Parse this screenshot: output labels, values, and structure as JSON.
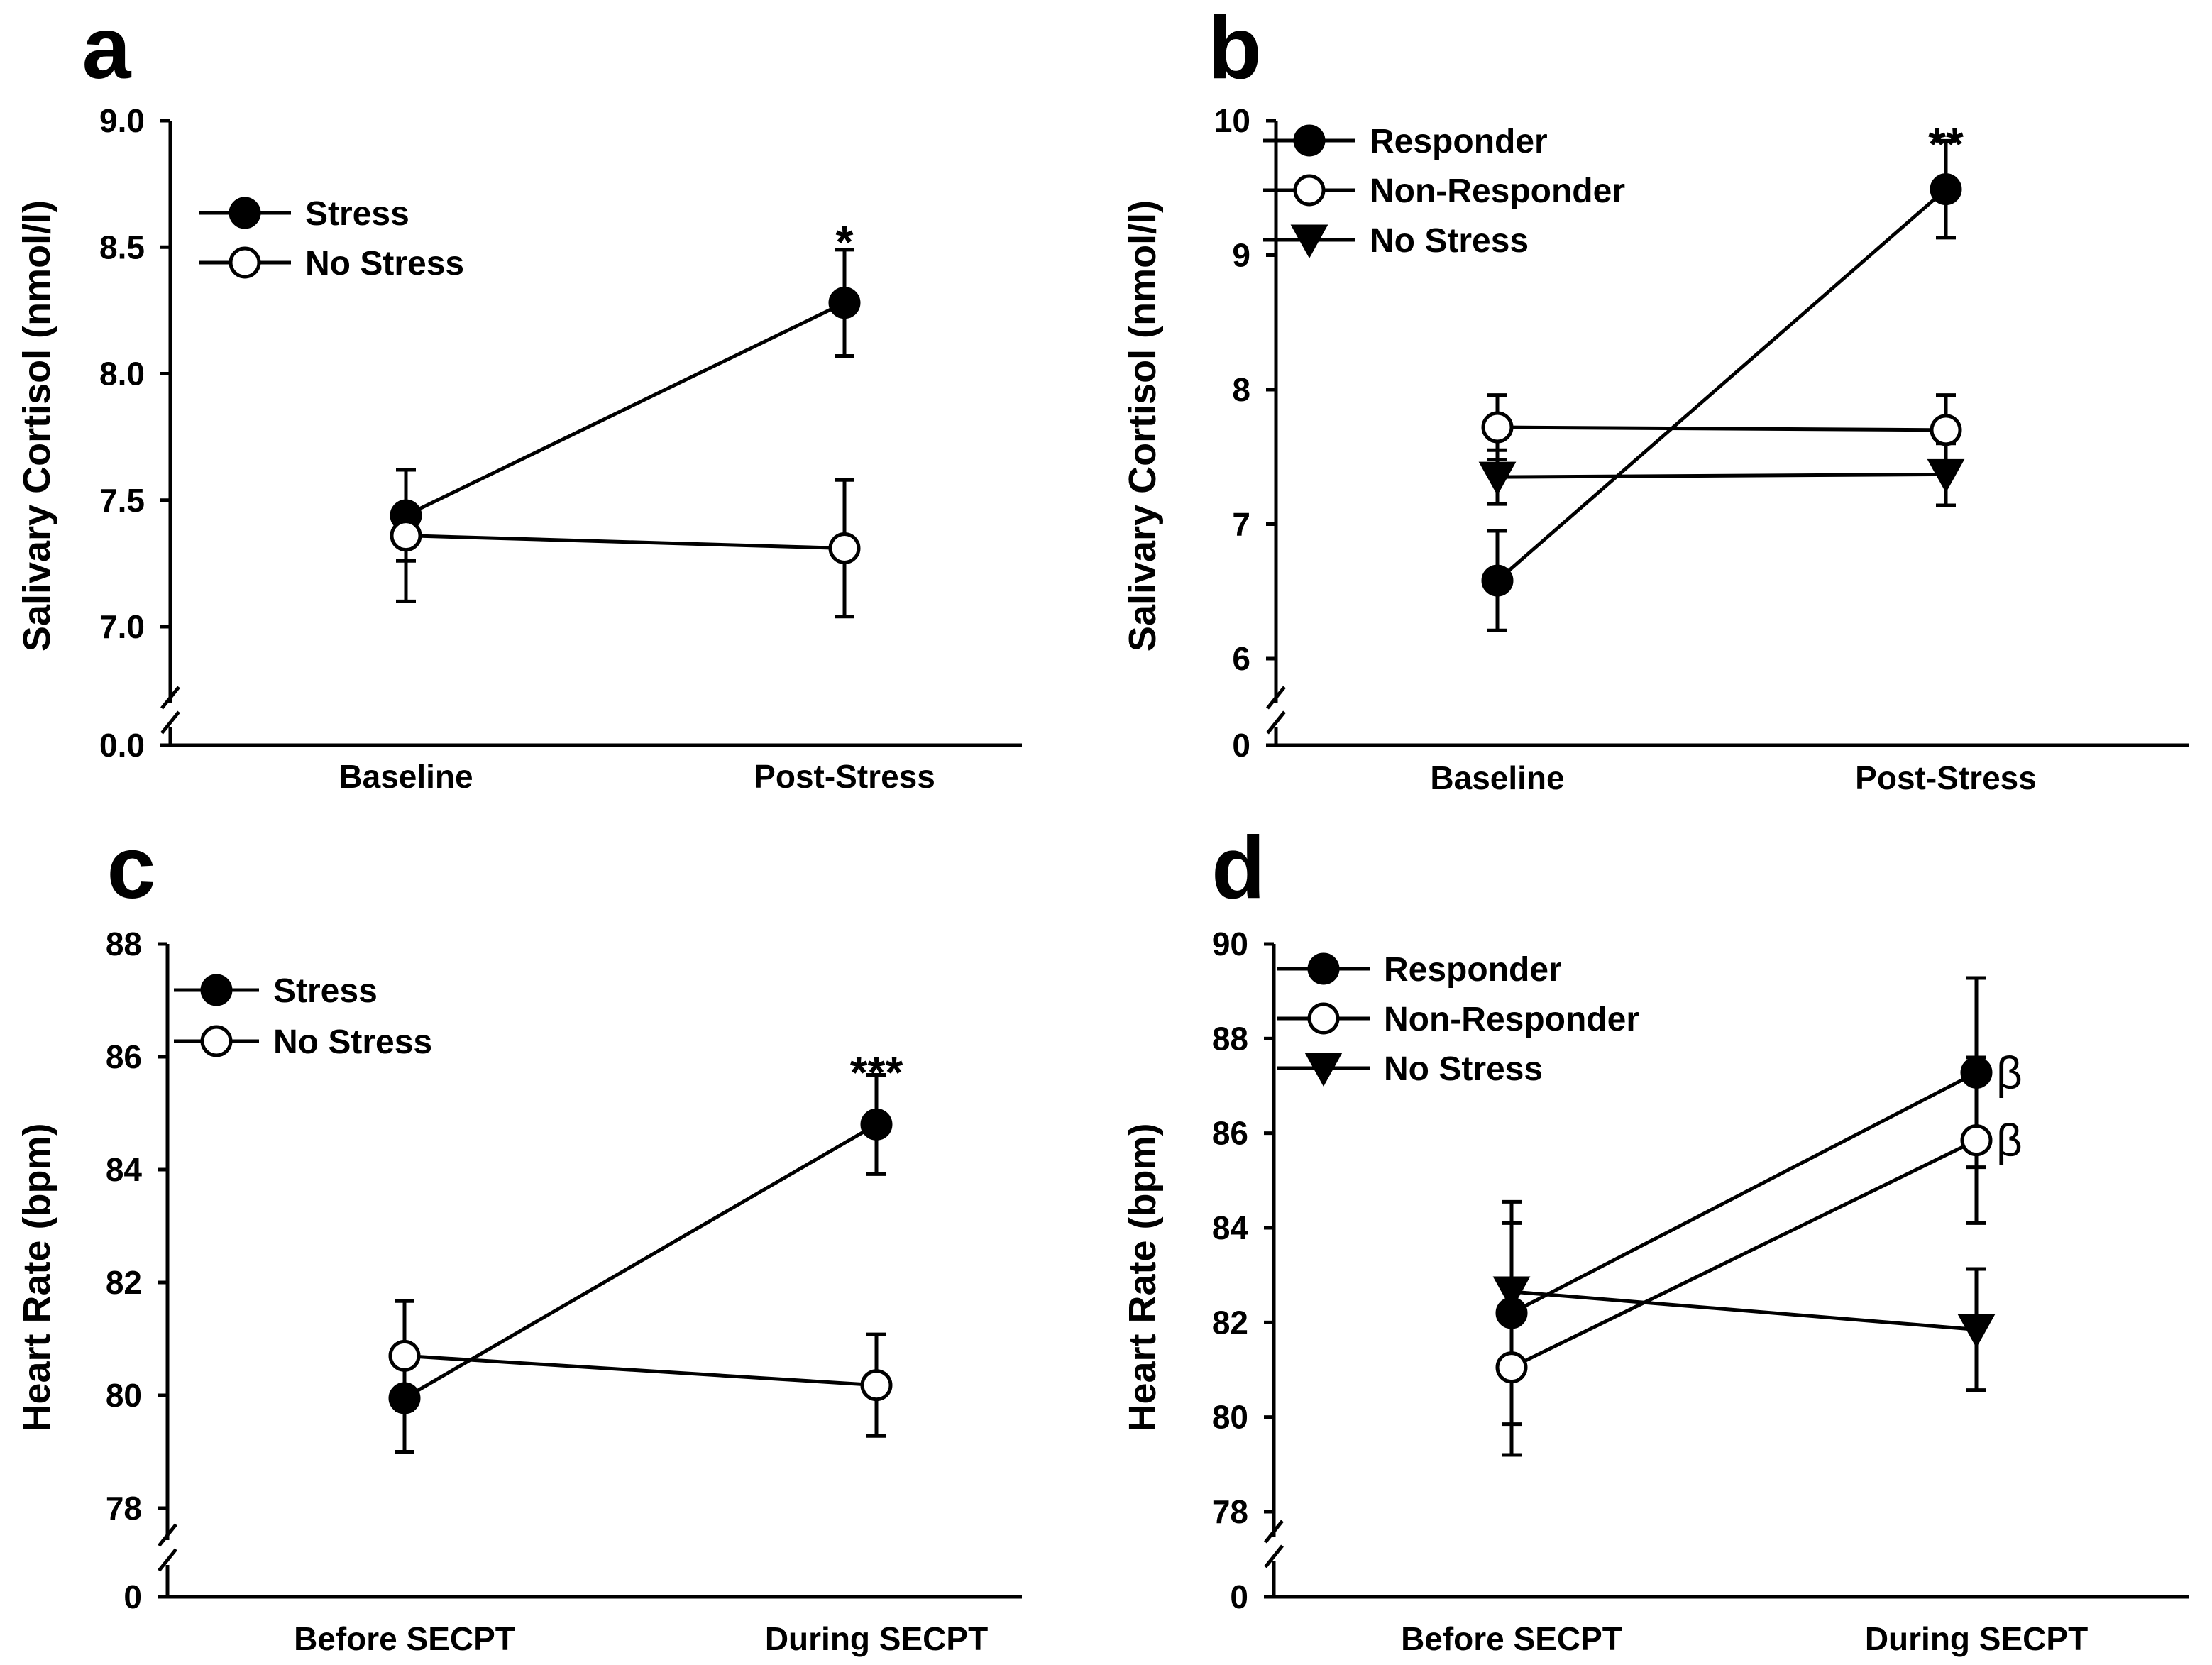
{
  "chart_data": [
    {
      "panel": "a",
      "type": "line",
      "ylabel": "Salivary Cortisol (nmol/l)",
      "categories": [
        "Baseline",
        "Post-Stress"
      ],
      "ylim": [
        7.0,
        9.0
      ],
      "yticks": [
        7.0,
        7.5,
        8.0,
        8.5,
        9.0
      ],
      "ytick_labels": [
        "7.0",
        "7.5",
        "8.0",
        "8.5",
        "9.0"
      ],
      "axis_break": true,
      "break_label": "0.0",
      "legend_position": "top-left",
      "series": [
        {
          "name": "Stress",
          "marker": "filled-circle",
          "values": [
            7.44,
            8.28
          ],
          "errors": [
            0.18,
            0.21
          ]
        },
        {
          "name": "No Stress",
          "marker": "open-circle",
          "values": [
            7.36,
            7.31
          ],
          "errors": [
            0.26,
            0.27
          ]
        }
      ],
      "annotations": [
        {
          "text": "*",
          "category": 1,
          "y": 8.56
        }
      ]
    },
    {
      "panel": "b",
      "type": "line",
      "ylabel": "Salivary Cortisol (nmol/l)",
      "categories": [
        "Baseline",
        "Post-Stress"
      ],
      "ylim": [
        6,
        10
      ],
      "yticks": [
        6,
        7,
        8,
        9,
        10
      ],
      "ytick_labels": [
        "6",
        "7",
        "8",
        "9",
        "10"
      ],
      "axis_break": true,
      "break_label": "0",
      "legend_position": "top-left",
      "series": [
        {
          "name": "Responder",
          "marker": "filled-circle",
          "values": [
            6.58,
            9.49
          ],
          "errors": [
            0.37,
            0.36
          ]
        },
        {
          "name": "Non-Responder",
          "marker": "open-circle",
          "values": [
            7.72,
            7.7
          ],
          "errors": [
            0.24,
            0.26
          ]
        },
        {
          "name": "No Stress",
          "marker": "filled-triangle-down",
          "values": [
            7.35,
            7.37
          ],
          "errors": [
            0.2,
            0.23
          ]
        }
      ],
      "annotations": [
        {
          "text": "**",
          "category": 1,
          "y": 9.9
        }
      ]
    },
    {
      "panel": "c",
      "type": "line",
      "ylabel": "Heart Rate (bpm)",
      "categories": [
        "Before SECPT",
        "During SECPT"
      ],
      "ylim": [
        78,
        88
      ],
      "yticks": [
        78,
        80,
        82,
        84,
        86,
        88
      ],
      "ytick_labels": [
        "78",
        "80",
        "82",
        "84",
        "86",
        "88"
      ],
      "axis_break": true,
      "break_label": "0",
      "legend_position": "top-left",
      "series": [
        {
          "name": "Stress",
          "marker": "filled-circle",
          "values": [
            79.95,
            84.8
          ],
          "errors": [
            0.95,
            0.88
          ]
        },
        {
          "name": "No Stress",
          "marker": "open-circle",
          "values": [
            80.7,
            80.18
          ],
          "errors": [
            0.97,
            0.9
          ]
        }
      ],
      "annotations": [
        {
          "text": "***",
          "category": 1,
          "y": 85.9
        }
      ]
    },
    {
      "panel": "d",
      "type": "line",
      "ylabel": "Heart Rate (bpm)",
      "categories": [
        "Before SECPT",
        "During SECPT"
      ],
      "ylim": [
        78,
        90
      ],
      "yticks": [
        78,
        80,
        82,
        84,
        86,
        88,
        90
      ],
      "ytick_labels": [
        "78",
        "80",
        "82",
        "84",
        "86",
        "88",
        "90"
      ],
      "axis_break": true,
      "break_label": "0",
      "legend_position": "top-left",
      "series": [
        {
          "name": "Responder",
          "marker": "filled-circle",
          "values": [
            82.2,
            87.28
          ],
          "errors": [
            2.35,
            2.0
          ]
        },
        {
          "name": "Non-Responder",
          "marker": "open-circle",
          "values": [
            81.05,
            85.85
          ],
          "errors": [
            1.85,
            1.75
          ]
        },
        {
          "name": "No Stress",
          "marker": "filled-triangle-down",
          "values": [
            82.65,
            81.85
          ],
          "errors": [
            1.45,
            1.28
          ]
        }
      ],
      "annotations": [
        {
          "text": "β",
          "category": 1,
          "y": 87.28,
          "series": "Responder"
        },
        {
          "text": "β",
          "category": 1,
          "y": 85.85,
          "series": "Non-Responder"
        }
      ]
    }
  ]
}
